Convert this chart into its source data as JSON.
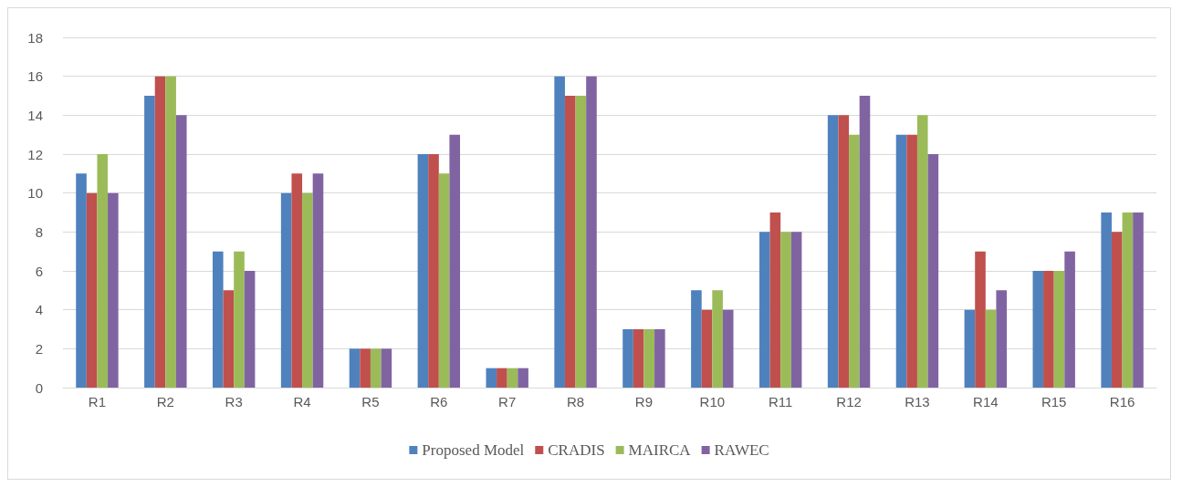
{
  "chart_data": {
    "type": "bar",
    "categories": [
      "R1",
      "R2",
      "R3",
      "R4",
      "R5",
      "R6",
      "R7",
      "R8",
      "R9",
      "R10",
      "R11",
      "R12",
      "R13",
      "R14",
      "R15",
      "R16"
    ],
    "series": [
      {
        "name": "Proposed Model",
        "color": "#4f81bd",
        "values": [
          11,
          15,
          7,
          10,
          2,
          12,
          1,
          16,
          3,
          5,
          8,
          14,
          13,
          4,
          6,
          9
        ]
      },
      {
        "name": "CRADIS",
        "color": "#c0504d",
        "values": [
          10,
          16,
          5,
          11,
          2,
          12,
          1,
          15,
          3,
          4,
          9,
          14,
          13,
          7,
          6,
          8
        ]
      },
      {
        "name": "MAIRCA",
        "color": "#9bbb59",
        "values": [
          12,
          16,
          7,
          10,
          2,
          11,
          1,
          15,
          3,
          5,
          8,
          13,
          14,
          4,
          6,
          9
        ]
      },
      {
        "name": "RAWEC",
        "color": "#8064a2",
        "values": [
          10,
          14,
          6,
          11,
          2,
          13,
          1,
          16,
          3,
          4,
          8,
          15,
          12,
          5,
          7,
          9
        ]
      }
    ],
    "ylim": [
      0,
      18
    ],
    "yticks": [
      0,
      2,
      4,
      6,
      8,
      10,
      12,
      14,
      16,
      18
    ],
    "grid": "y",
    "legend": "bottom"
  }
}
